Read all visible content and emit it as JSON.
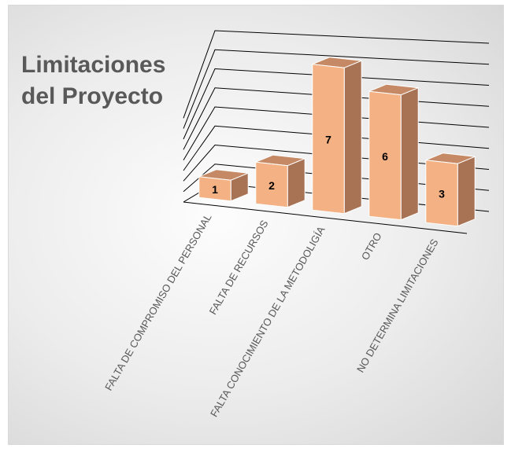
{
  "chart_data": {
    "type": "bar",
    "style": "3d-column",
    "title_line1": "Limitaciones",
    "title_line2": "del Proyecto",
    "categories": [
      "FALTA DE COMPROMISO DEL PERSONAL",
      "FALTA DE RECURSOS",
      "FALTA CONOCIMIENTO DE LA METODOLIGÍA",
      "OTRO",
      "NO DETERMINA LIMITACIONES"
    ],
    "values": [
      1,
      2,
      7,
      6,
      3
    ],
    "ylim": [
      0,
      8
    ],
    "grid": true,
    "show_value_labels": true,
    "colors": {
      "bar_front": "#F4B183",
      "bar_side": "#A87254",
      "bar_top": "#C58A65",
      "bar_outline": "#FFFFFF",
      "gridline": "#000000",
      "label_text": "#000000",
      "tick_text": "#595959",
      "title_text": "#595959"
    }
  }
}
